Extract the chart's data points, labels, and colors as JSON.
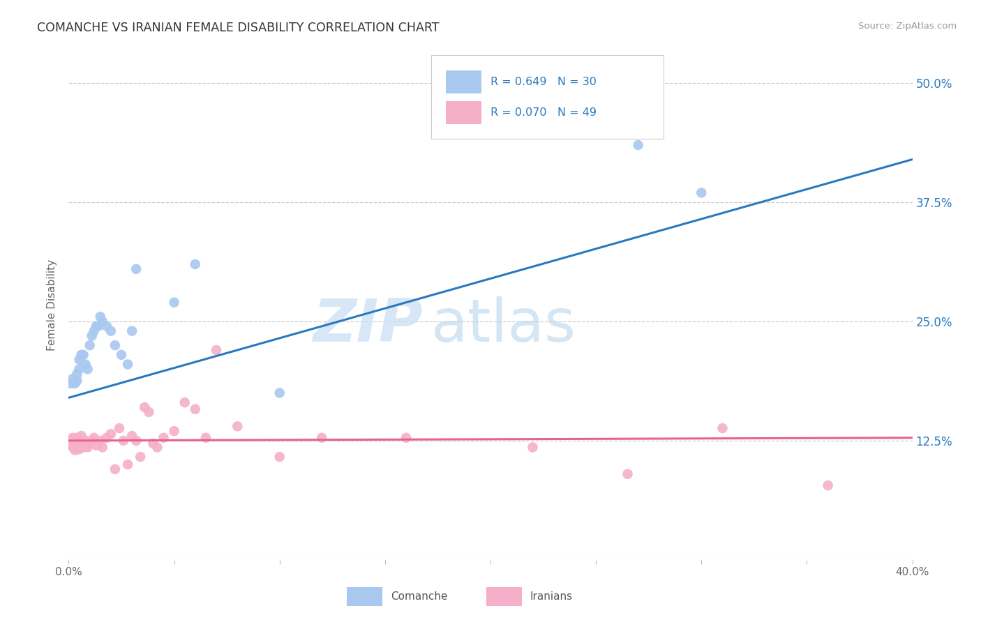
{
  "title": "COMANCHE VS IRANIAN FEMALE DISABILITY CORRELATION CHART",
  "source": "Source: ZipAtlas.com",
  "ylabel": "Female Disability",
  "ytick_positions": [
    0.125,
    0.25,
    0.375,
    0.5
  ],
  "ytick_labels": [
    "12.5%",
    "25.0%",
    "37.5%",
    "50.0%"
  ],
  "xmin": 0.0,
  "xmax": 0.4,
  "ymin": 0.0,
  "ymax": 0.535,
  "comanche_color": "#a8c8f0",
  "iranians_color": "#f5afc8",
  "trend_blue": "#2979c0",
  "trend_pink": "#e8638a",
  "watermark_zip": "ZIP",
  "watermark_atlas": "atlas",
  "legend_text1": "R = 0.649   N = 30",
  "legend_text2": "R = 0.070   N = 49",
  "bottom_label1": "Comanche",
  "bottom_label2": "Iranians",
  "comanche_x": [
    0.001,
    0.002,
    0.003,
    0.004,
    0.004,
    0.005,
    0.005,
    0.006,
    0.007,
    0.008,
    0.009,
    0.01,
    0.011,
    0.012,
    0.013,
    0.014,
    0.015,
    0.016,
    0.018,
    0.02,
    0.022,
    0.025,
    0.028,
    0.03,
    0.032,
    0.05,
    0.06,
    0.1,
    0.27,
    0.3
  ],
  "comanche_y": [
    0.185,
    0.19,
    0.185,
    0.195,
    0.188,
    0.21,
    0.2,
    0.215,
    0.215,
    0.205,
    0.2,
    0.225,
    0.235,
    0.24,
    0.245,
    0.245,
    0.255,
    0.25,
    0.245,
    0.24,
    0.225,
    0.215,
    0.205,
    0.24,
    0.305,
    0.27,
    0.31,
    0.175,
    0.435,
    0.385
  ],
  "iranians_x": [
    0.001,
    0.001,
    0.002,
    0.002,
    0.003,
    0.003,
    0.004,
    0.004,
    0.005,
    0.005,
    0.005,
    0.006,
    0.006,
    0.007,
    0.008,
    0.009,
    0.01,
    0.011,
    0.012,
    0.013,
    0.015,
    0.016,
    0.018,
    0.02,
    0.022,
    0.024,
    0.026,
    0.028,
    0.03,
    0.032,
    0.034,
    0.036,
    0.038,
    0.04,
    0.042,
    0.045,
    0.05,
    0.055,
    0.06,
    0.065,
    0.07,
    0.08,
    0.1,
    0.12,
    0.16,
    0.22,
    0.265,
    0.31,
    0.36
  ],
  "iranians_y": [
    0.125,
    0.12,
    0.128,
    0.118,
    0.122,
    0.115,
    0.12,
    0.128,
    0.116,
    0.12,
    0.125,
    0.122,
    0.13,
    0.118,
    0.125,
    0.118,
    0.122,
    0.125,
    0.128,
    0.12,
    0.125,
    0.118,
    0.128,
    0.132,
    0.095,
    0.138,
    0.125,
    0.1,
    0.13,
    0.125,
    0.108,
    0.16,
    0.155,
    0.122,
    0.118,
    0.128,
    0.135,
    0.165,
    0.158,
    0.128,
    0.22,
    0.14,
    0.108,
    0.128,
    0.128,
    0.118,
    0.09,
    0.138,
    0.078
  ]
}
